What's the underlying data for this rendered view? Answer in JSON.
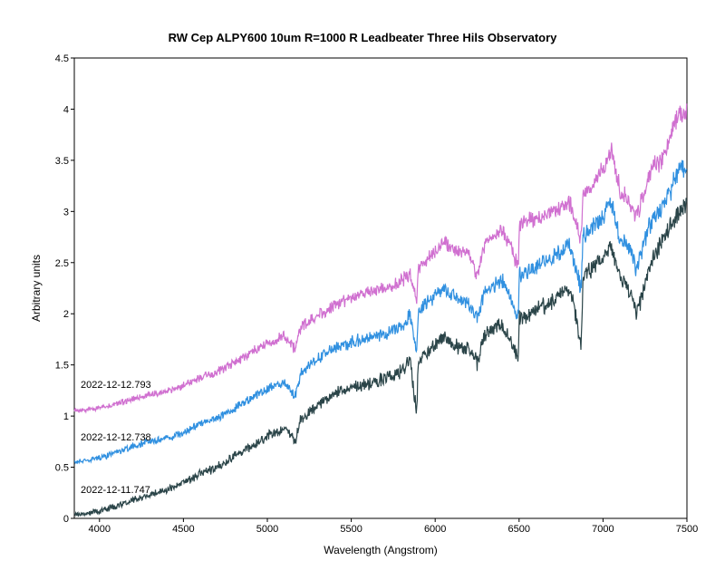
{
  "chart_data": {
    "type": "line",
    "title": "RW Cep   ALPY600 10um R=1000 R Leadbeater Three Hils Observatory",
    "xlabel": "Wavelength (Angstrom)",
    "ylabel": "Arbitrary units",
    "xlim": [
      3850,
      7500
    ],
    "ylim": [
      0,
      4.5
    ],
    "xticks": [
      4000,
      4500,
      5000,
      5500,
      6000,
      6500,
      7000,
      7500
    ],
    "xtick_labels": [
      "4000",
      "4500",
      "5000",
      "5500",
      "6000",
      "6500",
      "7000",
      "7500"
    ],
    "yticks": [
      0,
      0.5,
      1,
      1.5,
      2,
      2.5,
      3,
      3.5,
      4,
      4.5
    ],
    "ytick_labels": [
      "0",
      "0.5",
      "1",
      "1.5",
      "2",
      "2.5",
      "3",
      "3.5",
      "4",
      "4.5"
    ],
    "grid": false,
    "legend": "none",
    "annotations": [
      "2022-12-12.793",
      "2022-12-12.738",
      "2022-12-11.747"
    ],
    "series": [
      {
        "name": "2022-12-12.793",
        "color": "#d070d0",
        "x": [
          3850,
          3900,
          4000,
          4100,
          4200,
          4300,
          4400,
          4500,
          4600,
          4700,
          4800,
          4900,
          5000,
          5100,
          5168,
          5200,
          5300,
          5400,
          5500,
          5600,
          5700,
          5800,
          5850,
          5890,
          5900,
          5950,
          6000,
          6050,
          6100,
          6200,
          6250,
          6300,
          6400,
          6497,
          6500,
          6550,
          6600,
          6700,
          6800,
          6870,
          6880,
          6900,
          7000,
          7050,
          7100,
          7150,
          7200,
          7250,
          7300,
          7350,
          7400,
          7450,
          7500
        ],
        "y": [
          1.05,
          1.06,
          1.08,
          1.12,
          1.17,
          1.21,
          1.24,
          1.3,
          1.37,
          1.43,
          1.52,
          1.62,
          1.71,
          1.78,
          1.65,
          1.87,
          1.98,
          2.08,
          2.15,
          2.21,
          2.25,
          2.32,
          2.4,
          2.12,
          2.45,
          2.52,
          2.6,
          2.7,
          2.62,
          2.6,
          2.38,
          2.7,
          2.82,
          2.47,
          2.86,
          2.9,
          2.92,
          3.0,
          3.09,
          2.72,
          3.17,
          3.2,
          3.4,
          3.62,
          3.2,
          3.1,
          2.95,
          3.2,
          3.45,
          3.5,
          3.7,
          3.95,
          3.95
        ]
      },
      {
        "name": "2022-12-12.738",
        "color": "#3090e0",
        "x": [
          3850,
          3900,
          4000,
          4100,
          4200,
          4300,
          4400,
          4500,
          4600,
          4700,
          4800,
          4900,
          5000,
          5100,
          5168,
          5200,
          5300,
          5400,
          5500,
          5600,
          5700,
          5800,
          5850,
          5890,
          5900,
          5950,
          6000,
          6050,
          6100,
          6200,
          6250,
          6300,
          6400,
          6497,
          6500,
          6550,
          6600,
          6700,
          6800,
          6870,
          6880,
          6900,
          7000,
          7050,
          7100,
          7150,
          7200,
          7250,
          7300,
          7350,
          7400,
          7450,
          7500
        ],
        "y": [
          0.55,
          0.56,
          0.59,
          0.64,
          0.7,
          0.75,
          0.78,
          0.84,
          0.92,
          0.98,
          1.07,
          1.17,
          1.26,
          1.33,
          1.2,
          1.43,
          1.55,
          1.67,
          1.72,
          1.76,
          1.8,
          1.88,
          1.98,
          1.6,
          2.02,
          2.1,
          2.18,
          2.26,
          2.18,
          2.1,
          1.95,
          2.24,
          2.33,
          1.95,
          2.37,
          2.42,
          2.46,
          2.55,
          2.66,
          2.25,
          2.74,
          2.78,
          2.95,
          3.1,
          2.75,
          2.68,
          2.45,
          2.75,
          2.95,
          3.05,
          3.2,
          3.4,
          3.45
        ]
      },
      {
        "name": "2022-12-11.747",
        "color": "#2a4448",
        "x": [
          3850,
          3900,
          4000,
          4100,
          4200,
          4300,
          4400,
          4500,
          4600,
          4700,
          4800,
          4900,
          5000,
          5100,
          5168,
          5200,
          5300,
          5400,
          5500,
          5600,
          5700,
          5800,
          5850,
          5890,
          5900,
          5950,
          6000,
          6050,
          6100,
          6200,
          6250,
          6300,
          6400,
          6497,
          6500,
          6550,
          6600,
          6700,
          6800,
          6870,
          6880,
          6900,
          7000,
          7050,
          7100,
          7150,
          7200,
          7250,
          7300,
          7350,
          7400,
          7450,
          7500
        ],
        "y": [
          0.03,
          0.04,
          0.07,
          0.12,
          0.18,
          0.23,
          0.28,
          0.35,
          0.43,
          0.5,
          0.6,
          0.7,
          0.8,
          0.88,
          0.75,
          0.98,
          1.1,
          1.22,
          1.28,
          1.32,
          1.36,
          1.44,
          1.56,
          1.02,
          1.55,
          1.62,
          1.7,
          1.78,
          1.7,
          1.65,
          1.52,
          1.82,
          1.9,
          1.55,
          1.95,
          2.0,
          2.04,
          2.12,
          2.26,
          1.7,
          2.32,
          2.38,
          2.55,
          2.65,
          2.35,
          2.25,
          2.0,
          2.3,
          2.55,
          2.7,
          2.85,
          3.0,
          3.05
        ]
      }
    ]
  }
}
